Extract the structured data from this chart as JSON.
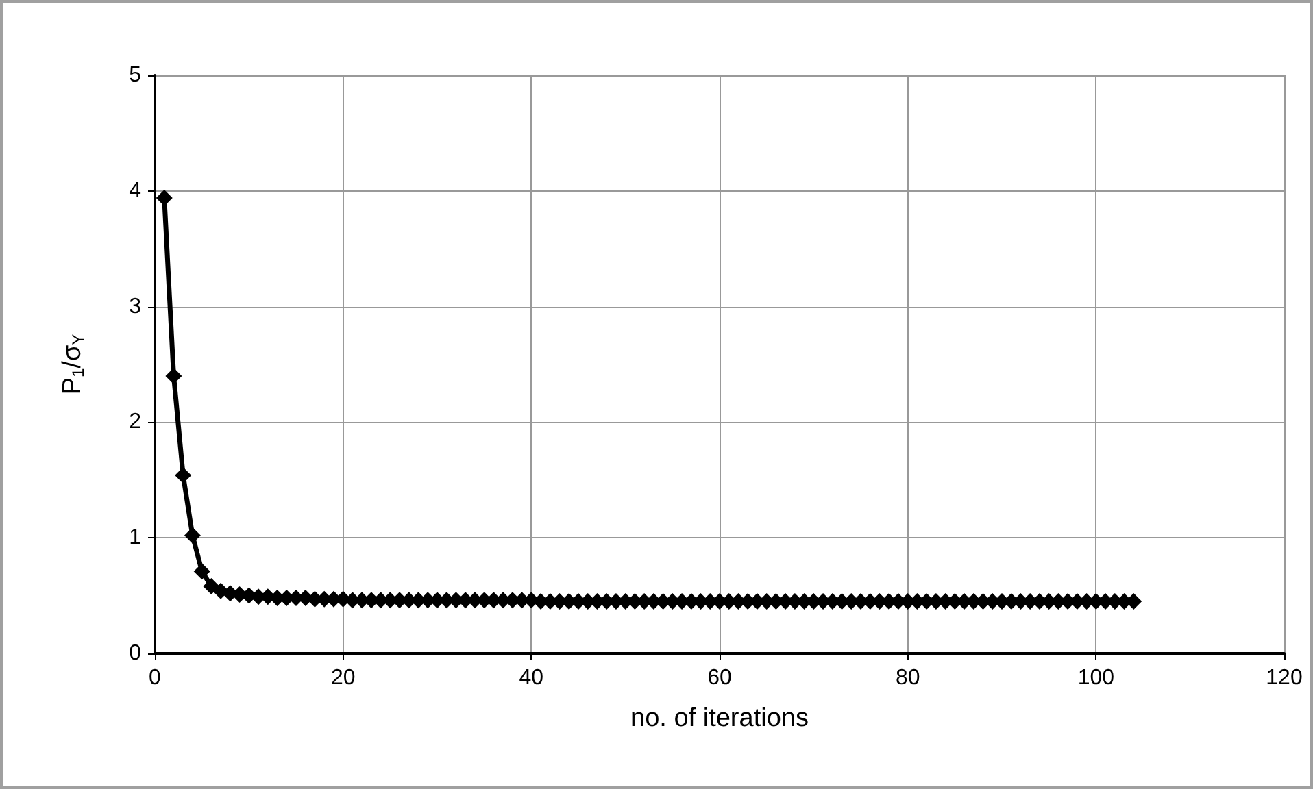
{
  "chart_data": {
    "type": "line",
    "xlabel": "no. of iterations",
    "ylabel": "P$_{1}$/σ$_{Y}$",
    "x": [
      1,
      2,
      3,
      4,
      5,
      6,
      7,
      8,
      9,
      10,
      11,
      12,
      13,
      14,
      15,
      16,
      17,
      18,
      19,
      20,
      21,
      22,
      23,
      24,
      25,
      26,
      27,
      28,
      29,
      30,
      31,
      32,
      33,
      34,
      35,
      36,
      37,
      38,
      39,
      40,
      41,
      42,
      43,
      44,
      45,
      46,
      47,
      48,
      49,
      50,
      51,
      52,
      53,
      54,
      55,
      56,
      57,
      58,
      59,
      60,
      61,
      62,
      63,
      64,
      65,
      66,
      67,
      68,
      69,
      70,
      71,
      72,
      73,
      74,
      75,
      76,
      77,
      78,
      79,
      80,
      81,
      82,
      83,
      84,
      85,
      86,
      87,
      88,
      89,
      90,
      91,
      92,
      93,
      94,
      95,
      96,
      97,
      98,
      99,
      100,
      101,
      102,
      103,
      104
    ],
    "series": [
      {
        "color": "#000000",
        "values": [
          3.94,
          2.4,
          1.54,
          1.02,
          0.71,
          0.58,
          0.54,
          0.52,
          0.51,
          0.5,
          0.49,
          0.49,
          0.48,
          0.48,
          0.48,
          0.48,
          0.47,
          0.47,
          0.47,
          0.47,
          0.46,
          0.46,
          0.46,
          0.46,
          0.46,
          0.46,
          0.46,
          0.46,
          0.46,
          0.46,
          0.46,
          0.46,
          0.46,
          0.46,
          0.46,
          0.46,
          0.46,
          0.46,
          0.46,
          0.46,
          0.45,
          0.45,
          0.45,
          0.45,
          0.45,
          0.45,
          0.45,
          0.45,
          0.45,
          0.45,
          0.45,
          0.45,
          0.45,
          0.45,
          0.45,
          0.45,
          0.45,
          0.45,
          0.45,
          0.45,
          0.45,
          0.45,
          0.45,
          0.45,
          0.45,
          0.45,
          0.45,
          0.45,
          0.45,
          0.45,
          0.45,
          0.45,
          0.45,
          0.45,
          0.45,
          0.45,
          0.45,
          0.45,
          0.45,
          0.45,
          0.45,
          0.45,
          0.45,
          0.45,
          0.45,
          0.45,
          0.45,
          0.45,
          0.45,
          0.45,
          0.45,
          0.45,
          0.45,
          0.45,
          0.45,
          0.45,
          0.45,
          0.45,
          0.45,
          0.45,
          0.45,
          0.45,
          0.45,
          0.45
        ]
      }
    ],
    "xlim": [
      0,
      120
    ],
    "xticks": [
      0,
      20,
      40,
      60,
      80,
      100,
      120
    ],
    "ylim": [
      0,
      5
    ],
    "yticks": [
      0,
      1,
      2,
      3,
      4,
      5
    ],
    "grid": true,
    "marker": "diamond",
    "line_style": "solid"
  }
}
